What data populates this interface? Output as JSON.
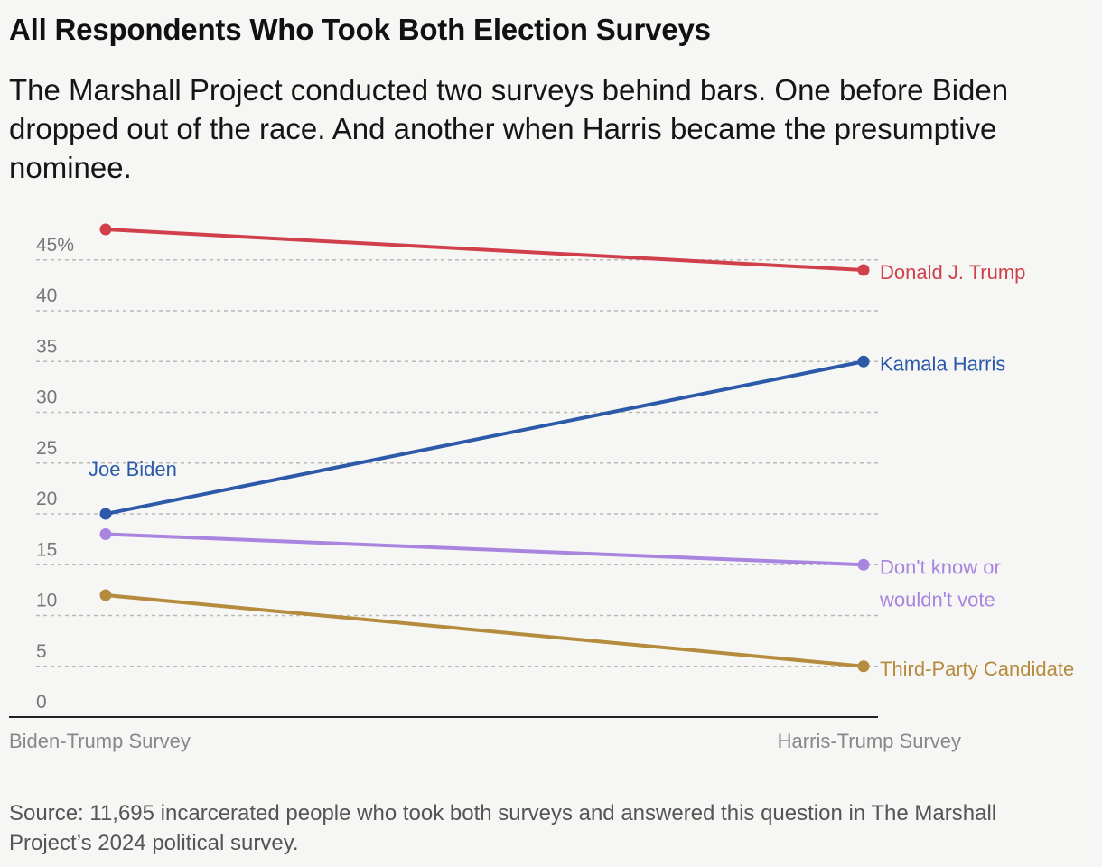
{
  "title": "All Respondents Who Took Both Election Surveys",
  "subtitle": "The Marshall Project conducted two surveys behind bars. One before Biden dropped out of the race. And another when Harris became the presumptive nominee.",
  "source": "Source: 11,695 incarcerated people who took both surveys and answered this question in The Marshall Project’s 2024 political survey.",
  "chart_data": {
    "type": "line",
    "title": "All Respondents Who Took Both Election Surveys",
    "x": [
      "Biden-Trump Survey",
      "Harris-Trump Survey"
    ],
    "ylim": [
      0,
      45
    ],
    "yticks": [
      "0",
      "5",
      "10",
      "15",
      "20",
      "25",
      "30",
      "35",
      "40",
      "45%"
    ],
    "ytick_values": [
      0,
      5,
      10,
      15,
      20,
      25,
      30,
      35,
      40,
      45
    ],
    "grid": true,
    "series": [
      {
        "name": "Donald J. Trump",
        "values": [
          48,
          44
        ],
        "color": "#d0404a",
        "end_label": [
          "Donald J. Trump"
        ]
      },
      {
        "name": "Kamala Harris",
        "values": [
          20,
          35
        ],
        "color": "#2c5aa8",
        "start_label": "Joe Biden",
        "end_label": [
          "Kamala Harris"
        ]
      },
      {
        "name": "Don't know or wouldn't vote",
        "values": [
          18,
          15
        ],
        "color": "#a985e0",
        "end_label": [
          "Don't know or",
          "wouldn't vote"
        ]
      },
      {
        "name": "Third-Party Candidate",
        "values": [
          12,
          5
        ],
        "color": "#b58b3e",
        "end_label": [
          "Third-Party Candidate"
        ]
      }
    ]
  }
}
